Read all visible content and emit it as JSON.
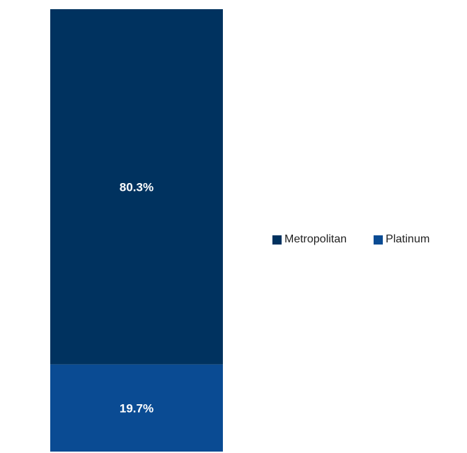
{
  "chart_data": {
    "type": "bar",
    "stacked": true,
    "categories": [
      ""
    ],
    "series": [
      {
        "name": "Platinum",
        "values": [
          19.7
        ],
        "label": "19.7%",
        "color": "#0a4b93"
      },
      {
        "name": "Metropolitan",
        "values": [
          80.3
        ],
        "label": "80.3%",
        "color": "#00325f"
      }
    ],
    "ylim": [
      0,
      100
    ],
    "grid": false,
    "axes_visible": false,
    "legend": {
      "placement": "right",
      "entries": [
        "Metropolitan",
        "Platinum"
      ]
    }
  }
}
